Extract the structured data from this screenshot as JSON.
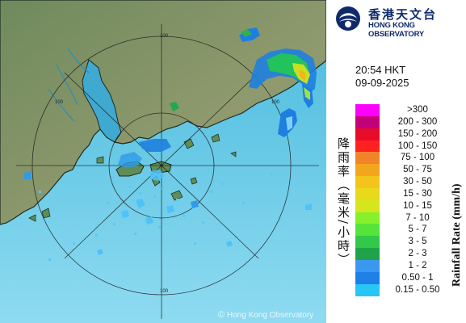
{
  "logo": {
    "name_zh": "香港天文台",
    "name_en": "HONG KONG OBSERVATORY"
  },
  "timestamp": {
    "time": "20:54 HKT",
    "date": "09-09-2025"
  },
  "legend": {
    "title_zh": "降雨率（毫米/小時）",
    "title_en": "Rainfall Rate (mm/h)",
    "items": [
      {
        "label": ">300",
        "color": "#ff00ff"
      },
      {
        "label": "200 - 300",
        "color": "#c2007a"
      },
      {
        "label": "150 - 200",
        "color": "#e60c2a"
      },
      {
        "label": "100 - 150",
        "color": "#ff2020"
      },
      {
        "label": "75 - 100",
        "color": "#f08428"
      },
      {
        "label": "50 - 75",
        "color": "#f2a61e"
      },
      {
        "label": "30 - 50",
        "color": "#f2c41c"
      },
      {
        "label": "15 - 30",
        "color": "#e8d91a"
      },
      {
        "label": "10 - 15",
        "color": "#d4e61e"
      },
      {
        "label": "7 - 10",
        "color": "#86f02a"
      },
      {
        "label": "5 - 7",
        "color": "#56e43a"
      },
      {
        "label": "3 - 5",
        "color": "#32c84a"
      },
      {
        "label": "2 - 3",
        "color": "#1fa34a"
      },
      {
        "label": "1 - 2",
        "color": "#3a98f0"
      },
      {
        "label": "0.50 - 1",
        "color": "#1e7fe6"
      },
      {
        "label": "0.15 - 0.50",
        "color": "#26c6f5"
      }
    ]
  },
  "map": {
    "range_rings": [
      "100",
      "100",
      "100",
      "100"
    ]
  },
  "copyright": {
    "symbol": "©",
    "text": "Hong Kong Observatory"
  }
}
